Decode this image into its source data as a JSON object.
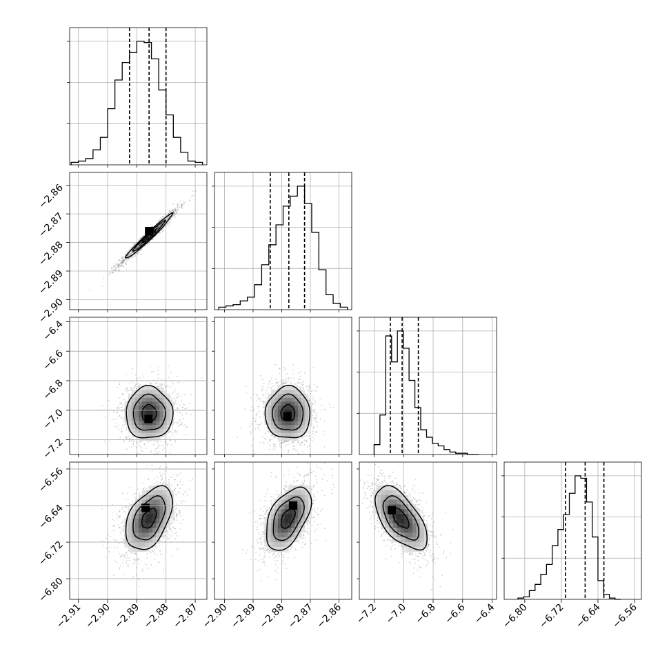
{
  "colors": {
    "ink": "#000000",
    "grid": "#b0b0b0",
    "background": "#ffffff"
  },
  "chart_data": {
    "type": "corner",
    "grid": true,
    "parameters": [
      {
        "range": [
          -2.913,
          -2.866
        ],
        "ticks": [
          -2.91,
          -2.9,
          -2.89,
          -2.88,
          -2.87
        ],
        "tick_labels": [
          "−2.91",
          "−2.90",
          "−2.89",
          "−2.88",
          "−2.87"
        ],
        "quantiles": [
          -2.8925,
          -2.8858,
          -2.88
        ],
        "hist_start": -2.9125,
        "hist_step": 0.0025,
        "hist_counts": [
          2,
          3,
          5,
          12,
          22,
          45,
          68,
          82,
          90,
          99,
          98,
          85,
          60,
          40,
          22,
          10,
          3,
          2
        ]
      },
      {
        "range": [
          -2.9035,
          -2.8555
        ],
        "ticks": [
          -2.9,
          -2.89,
          -2.88,
          -2.87,
          -2.86
        ],
        "tick_labels": [
          "−2.90",
          "−2.89",
          "−2.88",
          "−2.87",
          "−2.86"
        ],
        "quantiles": [
          -2.884,
          -2.8775,
          -2.872
        ],
        "hist_start": -2.902,
        "hist_step": 0.0025,
        "hist_counts": [
          2,
          3,
          4,
          7,
          10,
          20,
          36,
          52,
          68,
          83,
          91,
          99,
          85,
          62,
          32,
          12,
          5,
          2
        ]
      },
      {
        "range": [
          -7.3,
          -6.37
        ],
        "ticks": [
          -7.2,
          -7.0,
          -6.8,
          -6.6,
          -6.4
        ],
        "tick_labels": [
          "−7.2",
          "−7.0",
          "−6.8",
          "−6.6",
          "−6.4"
        ],
        "quantiles": [
          -7.09,
          -7.01,
          -6.9
        ],
        "hist_start": -7.2,
        "hist_step": 0.0395,
        "hist_counts": [
          8,
          32,
          96,
          75,
          100,
          86,
          60,
          38,
          20,
          14,
          9,
          7,
          4,
          2,
          1,
          1,
          0,
          0
        ]
      },
      {
        "range": [
          -6.845,
          -6.545
        ],
        "ticks": [
          -6.8,
          -6.72,
          -6.64,
          -6.56
        ],
        "tick_labels": [
          "−6.80",
          "−6.72",
          "−6.64",
          "−6.56"
        ],
        "quantiles": [
          -6.711,
          -6.668,
          -6.627
        ],
        "hist_start": -6.815,
        "hist_step": 0.0125,
        "hist_counts": [
          1,
          2,
          7,
          12,
          20,
          28,
          43,
          56,
          68,
          85,
          99,
          97,
          78,
          50,
          15,
          4,
          1,
          0
        ]
      }
    ],
    "pairs": [
      {
        "row": 1,
        "col": 0,
        "center": [
          -2.8858,
          -2.8778
        ],
        "sigma": [
          0.005,
          0.0049
        ],
        "rho": 0.98,
        "peak": [
          -2.8858,
          -2.876
        ],
        "contour_levels": [
          0.5,
          1.1,
          1.6
        ]
      },
      {
        "row": 2,
        "col": 0,
        "center": [
          -2.8858,
          -7.02
        ],
        "sigma": [
          0.005,
          0.11
        ],
        "rho": 0.0,
        "peak": [
          -2.886,
          -7.06
        ],
        "contour_levels": [
          0.5,
          1.1,
          1.6
        ]
      },
      {
        "row": 2,
        "col": 1,
        "center": [
          -2.8778,
          -7.02
        ],
        "sigma": [
          0.0049,
          0.11
        ],
        "rho": 0.0,
        "peak": [
          -2.878,
          -7.04
        ],
        "contour_levels": [
          0.5,
          1.1,
          1.6
        ]
      },
      {
        "row": 3,
        "col": 0,
        "center": [
          -2.8858,
          -6.668
        ],
        "sigma": [
          0.005,
          0.043
        ],
        "rho": 0.45,
        "peak": [
          -2.887,
          -6.645
        ],
        "contour_levels": [
          0.5,
          1.1,
          1.6
        ]
      },
      {
        "row": 3,
        "col": 1,
        "center": [
          -2.8778,
          -6.668
        ],
        "sigma": [
          0.0049,
          0.043
        ],
        "rho": 0.5,
        "peak": [
          -2.876,
          -6.64
        ],
        "contour_levels": [
          0.5,
          1.1,
          1.6
        ]
      },
      {
        "row": 3,
        "col": 2,
        "center": [
          -7.02,
          -6.668
        ],
        "sigma": [
          0.11,
          0.043
        ],
        "rho": -0.6,
        "peak": [
          -7.08,
          -6.65
        ],
        "contour_levels": [
          0.5,
          1.1,
          1.6
        ]
      }
    ]
  }
}
